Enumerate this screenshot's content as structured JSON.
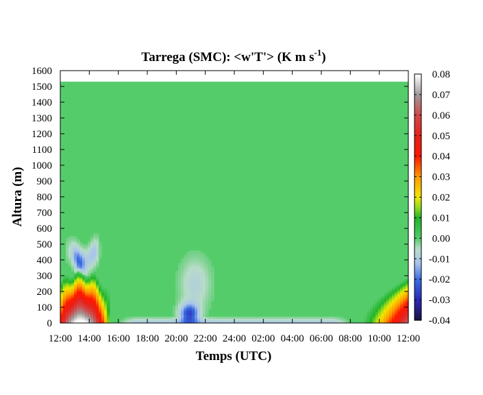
{
  "chart_data": {
    "type": "heatmap",
    "title": {
      "main": "Tarrega (SMC): <w'T'> (K m s",
      "sup": "-1",
      "close": ")"
    },
    "xlabel": "Temps (UTC)",
    "ylabel": "Altura (m)",
    "x_ticks": [
      "12:00",
      "14:00",
      "16:00",
      "18:00",
      "20:00",
      "22:00",
      "24:00",
      "02:00",
      "04:00",
      "06:00",
      "08:00",
      "10:00",
      "12:00"
    ],
    "x_range_hours": [
      0,
      24
    ],
    "y_ticks": [
      "0",
      "100",
      "200",
      "300",
      "400",
      "500",
      "600",
      "700",
      "800",
      "900",
      "1000",
      "1100",
      "1200",
      "1300",
      "1400",
      "1500",
      "1600"
    ],
    "ylim": [
      0,
      1600
    ],
    "data_top_m": 1530,
    "background_value": 0.0,
    "colorbar": {
      "range": [
        -0.04,
        0.08
      ],
      "ticks": [
        "0.08",
        "0.07",
        "0.06",
        "0.05",
        "0.04",
        "0.03",
        "0.02",
        "0.01",
        "0.00",
        "-0.01",
        "-0.02",
        "-0.03",
        "-0.04"
      ],
      "stops": [
        {
          "v": -0.04,
          "color": "#1a1040"
        },
        {
          "v": -0.03,
          "color": "#2a28b8"
        },
        {
          "v": -0.02,
          "color": "#3a6ce0"
        },
        {
          "v": -0.012,
          "color": "#a8c4ec"
        },
        {
          "v": -0.005,
          "color": "#b8dcc8"
        },
        {
          "v": 0.0,
          "color": "#55cc6a"
        },
        {
          "v": 0.01,
          "color": "#22b428"
        },
        {
          "v": 0.015,
          "color": "#8ed820"
        },
        {
          "v": 0.02,
          "color": "#f0e800"
        },
        {
          "v": 0.03,
          "color": "#ff9a00"
        },
        {
          "v": 0.04,
          "color": "#ff1800"
        },
        {
          "v": 0.05,
          "color": "#e82018"
        },
        {
          "v": 0.06,
          "color": "#d04848"
        },
        {
          "v": 0.07,
          "color": "#a09898"
        },
        {
          "v": 0.08,
          "color": "#ffffff"
        }
      ]
    },
    "features": [
      {
        "kind": "positive-plume",
        "t_start": 0.0,
        "t_end": 3.5,
        "peak_time": 1.4,
        "top_m": 330,
        "peak_value": 0.08
      },
      {
        "kind": "negative-cap",
        "t_start": 0.3,
        "t_end": 2.8,
        "center_m": 420,
        "peak_value": -0.022
      },
      {
        "kind": "negative-surface",
        "t_start": 4.0,
        "t_end": 20.0,
        "top_m": 30,
        "peak_value": -0.012
      },
      {
        "kind": "negative-patch",
        "t_center": 8.9,
        "center_m": 60,
        "peak_value": -0.025
      },
      {
        "kind": "faint-negative",
        "t_center": 9.3,
        "center_m": 250,
        "peak_value": -0.008
      },
      {
        "kind": "positive-plume",
        "t_start": 20.8,
        "t_end": 24.0,
        "peak_time": 24.0,
        "top_m": 290,
        "peak_value": 0.06
      }
    ]
  }
}
